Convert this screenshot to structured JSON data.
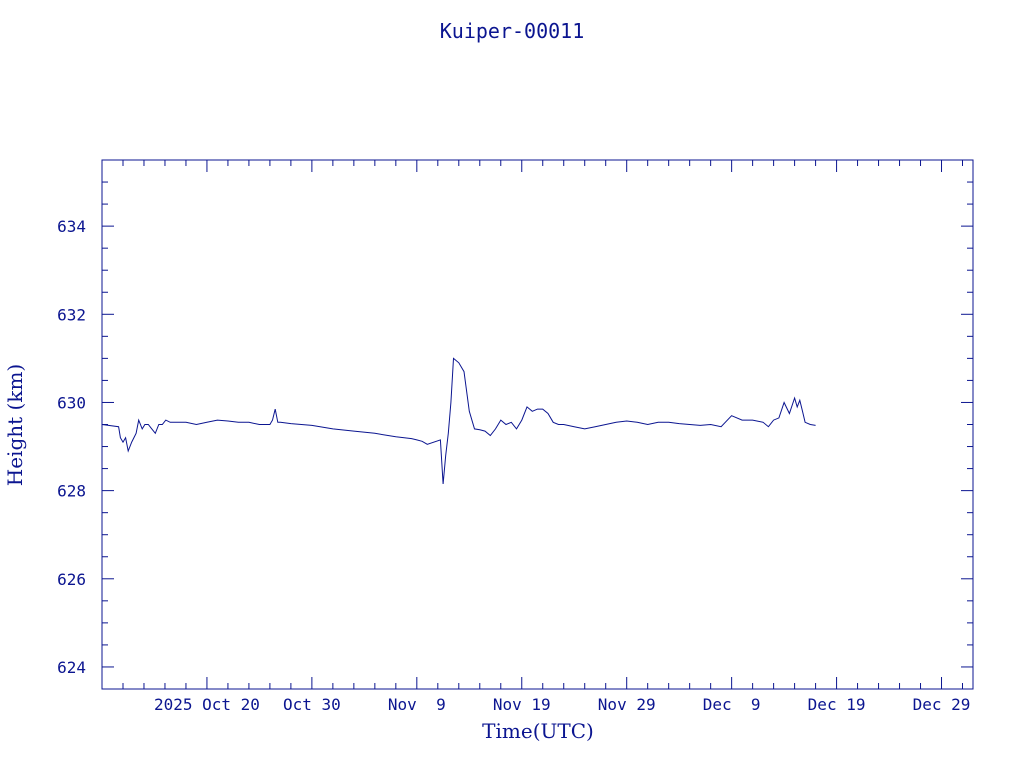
{
  "chart_data": {
    "type": "line",
    "title": "Kuiper-00011",
    "xlabel": "Time(UTC)",
    "ylabel": "Height (km)",
    "color": "#0b1590",
    "x_range": [
      "2025-10-10T00:00Z",
      "2026-01-01T00:00Z"
    ],
    "ylim": [
      623.5,
      635.5
    ],
    "yticks": [
      624,
      626,
      628,
      630,
      632,
      634
    ],
    "xticks": [
      {
        "date": "2025-10-20",
        "label": "2025 Oct 20"
      },
      {
        "date": "2025-10-30",
        "label": "Oct 30"
      },
      {
        "date": "2025-11-09",
        "label": "Nov  9"
      },
      {
        "date": "2025-11-19",
        "label": "Nov 19"
      },
      {
        "date": "2025-11-29",
        "label": "Nov 29"
      },
      {
        "date": "2025-12-09",
        "label": "Dec  9"
      },
      {
        "date": "2025-12-19",
        "label": "Dec 19"
      },
      {
        "date": "2025-12-29",
        "label": "Dec 29"
      }
    ],
    "grid": false,
    "series": [
      {
        "x": [
          "2025-10-10T00:00",
          "2025-10-11T14:00",
          "2025-10-11T18:00",
          "2025-10-12T00:00",
          "2025-10-12T06:00",
          "2025-10-12T12:00",
          "2025-10-12T20:00",
          "2025-10-13T06:00",
          "2025-10-13T12:00",
          "2025-10-13T20:00",
          "2025-10-14T02:00",
          "2025-10-14T10:00",
          "2025-10-14T18:00",
          "2025-10-15T02:00",
          "2025-10-15T10:00",
          "2025-10-15T18:00",
          "2025-10-16T02:00",
          "2025-10-16T12:00",
          "2025-10-17T00:00",
          "2025-10-18T00:00",
          "2025-10-19T00:00",
          "2025-10-20T00:00",
          "2025-10-21T00:00",
          "2025-10-22T00:00",
          "2025-10-23T00:00",
          "2025-10-24T00:00",
          "2025-10-25T00:00",
          "2025-10-26T00:00",
          "2025-10-26T06:00",
          "2025-10-26T12:00",
          "2025-10-26T18:00",
          "2025-10-27T00:00",
          "2025-10-28T00:00",
          "2025-10-29T00:00",
          "2025-10-30T00:00",
          "2025-11-01T00:00",
          "2025-11-03T00:00",
          "2025-11-05T00:00",
          "2025-11-07T00:00",
          "2025-11-08T12:00",
          "2025-11-09T00:00",
          "2025-11-09T12:00",
          "2025-11-10T00:00",
          "2025-11-11T06:00",
          "2025-11-11T12:00",
          "2025-11-11T18:00",
          "2025-11-12T00:00",
          "2025-11-12T06:00",
          "2025-11-12T12:00",
          "2025-11-13T00:00",
          "2025-11-13T12:00",
          "2025-11-14T00:00",
          "2025-11-14T12:00",
          "2025-11-15T00:00",
          "2025-11-15T12:00",
          "2025-11-16T00:00",
          "2025-11-16T12:00",
          "2025-11-17T00:00",
          "2025-11-17T12:00",
          "2025-11-18T00:00",
          "2025-11-18T12:00",
          "2025-11-19T00:00",
          "2025-11-19T12:00",
          "2025-11-20T00:00",
          "2025-11-20T12:00",
          "2025-11-21T00:00",
          "2025-11-21T12:00",
          "2025-11-22T00:00",
          "2025-11-22T12:00",
          "2025-11-23T00:00",
          "2025-11-24T00:00",
          "2025-11-25T00:00",
          "2025-11-26T00:00",
          "2025-11-27T00:00",
          "2025-11-28T00:00",
          "2025-11-29T00:00",
          "2025-11-30T00:00",
          "2025-12-01T00:00",
          "2025-12-02T00:00",
          "2025-12-03T00:00",
          "2025-12-04T00:00",
          "2025-12-05T00:00",
          "2025-12-06T00:00",
          "2025-12-07T00:00",
          "2025-12-08T00:00",
          "2025-12-09T00:00",
          "2025-12-10T00:00",
          "2025-12-11T00:00",
          "2025-12-12T00:00",
          "2025-12-12T12:00",
          "2025-12-13T00:00",
          "2025-12-13T12:00",
          "2025-12-14T00:00",
          "2025-12-14T12:00",
          "2025-12-15T00:00",
          "2025-12-15T06:00",
          "2025-12-15T12:00",
          "2025-12-15T18:00",
          "2025-12-16T00:00",
          "2025-12-16T12:00",
          "2025-12-17T00:00"
        ],
        "y": [
          629.5,
          629.45,
          629.2,
          629.1,
          629.2,
          628.9,
          629.1,
          629.3,
          629.6,
          629.4,
          629.5,
          629.5,
          629.4,
          629.3,
          629.5,
          629.5,
          629.6,
          629.55,
          629.55,
          629.55,
          629.5,
          629.55,
          629.6,
          629.58,
          629.55,
          629.55,
          629.5,
          629.5,
          629.6,
          629.85,
          629.55,
          629.55,
          629.52,
          629.5,
          629.48,
          629.4,
          629.35,
          629.3,
          629.22,
          629.18,
          629.15,
          629.12,
          629.05,
          629.15,
          628.15,
          628.8,
          629.3,
          630.0,
          631.0,
          630.9,
          630.7,
          629.8,
          629.4,
          629.38,
          629.35,
          629.25,
          629.4,
          629.6,
          629.5,
          629.55,
          629.4,
          629.6,
          629.9,
          629.8,
          629.85,
          629.85,
          629.75,
          629.55,
          629.5,
          629.5,
          629.45,
          629.4,
          629.45,
          629.5,
          629.55,
          629.58,
          629.55,
          629.5,
          629.55,
          629.55,
          629.52,
          629.5,
          629.48,
          629.5,
          629.45,
          629.7,
          629.6,
          629.6,
          629.55,
          629.45,
          629.6,
          629.65,
          630.0,
          629.75,
          630.1,
          629.9,
          630.05,
          629.8,
          629.55,
          629.5,
          629.48
        ]
      }
    ]
  }
}
